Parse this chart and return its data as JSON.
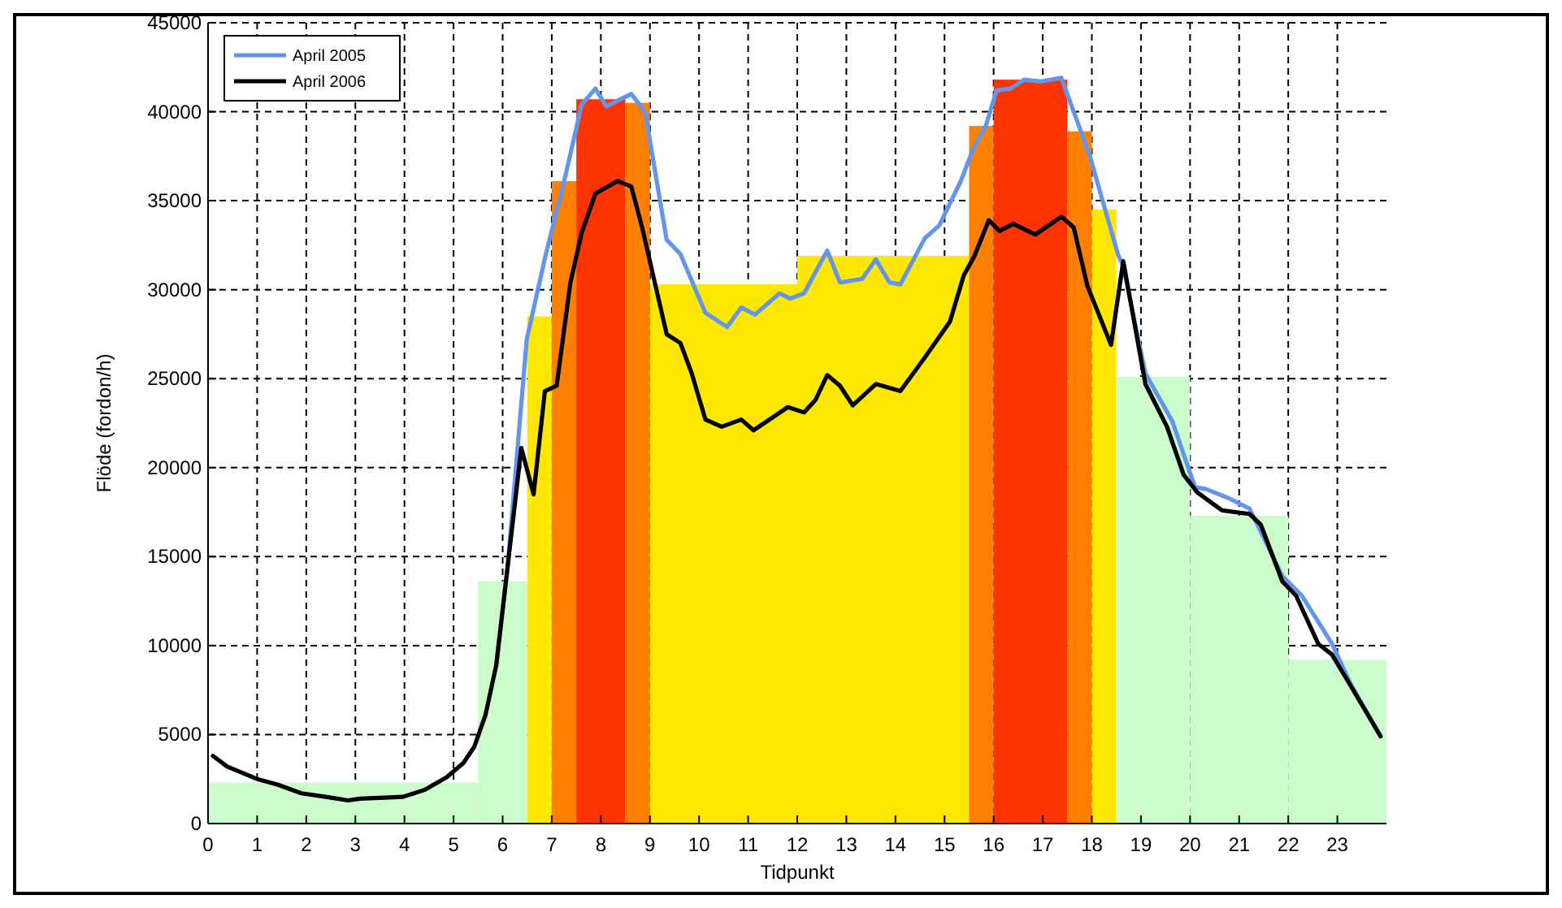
{
  "chart_data": {
    "type": "line",
    "xlabel": "Tidpunkt",
    "ylabel": "Flöde (fordon/h)",
    "xlim": [
      0,
      24
    ],
    "ylim": [
      0,
      45000
    ],
    "xticks": [
      0,
      1,
      2,
      3,
      4,
      5,
      6,
      7,
      8,
      9,
      10,
      11,
      12,
      13,
      14,
      15,
      16,
      17,
      18,
      19,
      20,
      21,
      22,
      23
    ],
    "yticks": [
      0,
      5000,
      10000,
      15000,
      20000,
      25000,
      30000,
      35000,
      40000,
      45000
    ],
    "grid": true,
    "legend": "top left",
    "line_style": "solid",
    "marker": "none",
    "series": [
      {
        "type": "histogram",
        "bins": [
          0,
          5.5,
          6.5,
          7,
          7.5,
          8.5,
          9,
          12,
          15.5,
          16,
          17.5,
          18,
          18.5,
          20,
          22,
          24
        ],
        "values": [
          2300,
          13600,
          28500,
          36100,
          40700,
          40500,
          30300,
          31900,
          39200,
          41800,
          38900,
          34500,
          25100,
          17300,
          9200
        ],
        "colors": [
          "#ccfccc",
          "#ccfccc",
          "#ffe800",
          "#ff8000",
          "#ff3300",
          "#ff8000",
          "#ffe800",
          "#ffe800",
          "#ff8000",
          "#ff3300",
          "#ff8000",
          "#ffe800",
          "#ccfccc",
          "#ccfccc",
          "#ccfccc"
        ]
      },
      {
        "name": "April 2005",
        "color": "#6495ed",
        "x": [
          5.87,
          6.1,
          6.49,
          6.88,
          7.27,
          7.61,
          7.89,
          8.11,
          8.62,
          8.9,
          9.34,
          9.62,
          10.13,
          10.57,
          10.86,
          11.14,
          11.64,
          11.86,
          12.14,
          12.61,
          12.87,
          13.32,
          13.6,
          13.88,
          14.1,
          14.6,
          14.89,
          15.33,
          15.61,
          15.84,
          16.06,
          16.34,
          16.62,
          16.96,
          17.38,
          17.96,
          18.53,
          18.64,
          19.09,
          19.64,
          20.1,
          20.32,
          20.77,
          21.21,
          21.88,
          22.28,
          22.89,
          23.28,
          23.88
        ],
        "values": [
          8900,
          14400,
          27200,
          32000,
          36300,
          40400,
          41300,
          40300,
          41000,
          40000,
          32800,
          32000,
          28700,
          27900,
          29000,
          28600,
          29800,
          29500,
          29800,
          32200,
          30400,
          30600,
          31700,
          30400,
          30300,
          32900,
          33600,
          36100,
          38100,
          39200,
          41200,
          41300,
          41800,
          41700,
          41900,
          37500,
          32000,
          31300,
          25300,
          22600,
          18900,
          18800,
          18300,
          17700,
          13900,
          12800,
          10100,
          7800,
          4900
        ]
      },
      {
        "name": "April 2006",
        "color": "#000000",
        "x": [
          0.1,
          0.39,
          1.0,
          1.4,
          1.9,
          2.4,
          2.85,
          3.1,
          3.97,
          4.42,
          4.86,
          5.2,
          5.42,
          5.65,
          5.87,
          6.1,
          6.38,
          6.63,
          6.86,
          7.1,
          7.38,
          7.61,
          7.89,
          8.34,
          8.62,
          8.84,
          9.34,
          9.62,
          9.85,
          10.13,
          10.46,
          10.86,
          11.11,
          11.81,
          12.14,
          12.37,
          12.61,
          12.87,
          13.13,
          13.6,
          14.1,
          14.6,
          15.11,
          15.39,
          15.61,
          15.9,
          16.12,
          16.4,
          16.85,
          17.38,
          17.63,
          17.91,
          18.39,
          18.64,
          19.09,
          19.53,
          19.87,
          20.15,
          20.65,
          21.21,
          21.44,
          21.88,
          22.16,
          22.61,
          22.89,
          23.28,
          23.88
        ],
        "values": [
          3800,
          3200,
          2500,
          2200,
          1700,
          1500,
          1300,
          1400,
          1500,
          1900,
          2600,
          3400,
          4300,
          6100,
          8900,
          14400,
          21100,
          18500,
          24300,
          24600,
          30400,
          33200,
          35400,
          36100,
          35800,
          33500,
          27500,
          27000,
          25300,
          22700,
          22300,
          22700,
          22100,
          23400,
          23100,
          23800,
          25200,
          24600,
          23500,
          24700,
          24300,
          26200,
          28200,
          30800,
          31900,
          33900,
          33300,
          33700,
          33100,
          34100,
          33500,
          30200,
          26900,
          31600,
          24700,
          22300,
          19600,
          18600,
          17600,
          17400,
          16800,
          13600,
          12800,
          10100,
          9500,
          7700,
          4900
        ]
      }
    ]
  }
}
